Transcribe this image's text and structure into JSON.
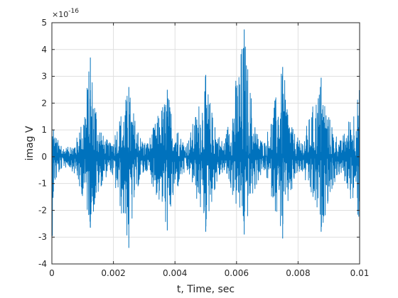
{
  "chart_data": {
    "type": "line",
    "title": "",
    "xlabel": "t, Time, sec",
    "ylabel": "imag V",
    "y_exponent_label": "×10",
    "y_exponent_power": "-16",
    "xlim": [
      0,
      0.01
    ],
    "ylim": [
      -4,
      5
    ],
    "grid": true,
    "x_ticks": [
      0,
      0.002,
      0.004,
      0.006,
      0.008,
      0.01
    ],
    "x_tick_labels": [
      "0",
      "0.002",
      "0.004",
      "0.006",
      "0.008",
      "0.01"
    ],
    "y_ticks": [
      -4,
      -3,
      -2,
      -1,
      0,
      1,
      2,
      3,
      4,
      5
    ],
    "y_tick_labels": [
      "-4",
      "-3",
      "-2",
      "-1",
      "0",
      "1",
      "2",
      "3",
      "4",
      "5"
    ],
    "line_color": "#0072BD",
    "series": [
      {
        "description_points": "approximate envelope peaks of the noisy signal (x in sec, y in units of 1e-16)",
        "x": [
          0.0,
          5e-05,
          0.0003,
          0.0006,
          0.0009,
          0.00125,
          0.0016,
          0.0019,
          0.0025,
          0.0028,
          0.0031,
          0.00375,
          0.0041,
          0.0044,
          0.005,
          0.0053,
          0.0056,
          0.00625,
          0.0066,
          0.0069,
          0.0075,
          0.0078,
          0.0081,
          0.00875,
          0.0091,
          0.0094,
          0.01
        ],
        "y_max": [
          1.7,
          1.0,
          0.4,
          0.35,
          0.9,
          3.7,
          0.9,
          0.5,
          2.6,
          0.9,
          0.5,
          2.5,
          0.9,
          0.5,
          3.05,
          1.1,
          0.5,
          4.75,
          1.1,
          0.5,
          3.35,
          1.1,
          0.5,
          2.95,
          1.1,
          0.6,
          2.6
        ],
        "y_min": [
          -3.8,
          -1.3,
          -0.45,
          -0.4,
          -1.1,
          -2.65,
          -1.1,
          -0.5,
          -3.4,
          -1.1,
          -0.5,
          -2.75,
          -1.1,
          -0.5,
          -2.8,
          -1.2,
          -0.5,
          -2.9,
          -1.2,
          -0.5,
          -3.05,
          -1.2,
          -0.5,
          -2.8,
          -1.2,
          -0.6,
          -2.55
        ]
      }
    ]
  }
}
